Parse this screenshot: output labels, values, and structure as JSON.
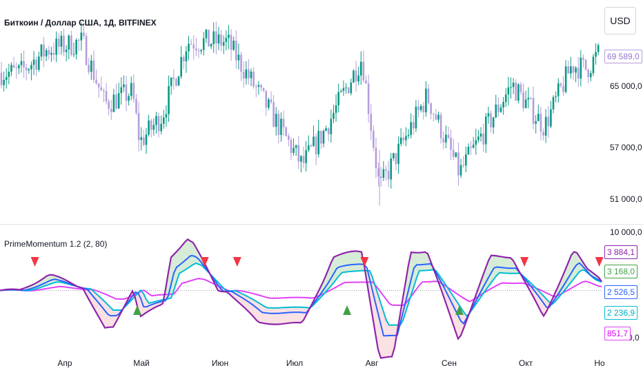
{
  "header": {
    "title": "Биткоин / Доллар США, 1Д, BITFINEX",
    "currency_button": "USD"
  },
  "indicator": {
    "title": "PrimeMomentum 1.2 (2, 80)"
  },
  "colors": {
    "bull": "#089981",
    "bear": "#b39ddb",
    "purple": "#8e24aa",
    "blue": "#2962ff",
    "teal": "#00bcd4",
    "magenta": "#e040fb",
    "green_badge": "#43a047",
    "up_arrow": "#43a047",
    "down_arrow": "#f23645",
    "fill_pos": "#c8e6c9",
    "fill_neg": "#f8d7da"
  },
  "price_axis": {
    "ticks": [
      "65 000,0",
      "57 000,0",
      "51 000,0"
    ],
    "last_price": "69 589,0"
  },
  "indicator_axis": {
    "ticks": [
      "10 000,0",
      "0,0"
    ],
    "badges": [
      "3 884,1",
      "3 168,0",
      "2 526,5",
      "2 236,9",
      "851,7"
    ]
  },
  "x_axis": {
    "labels": [
      "Апр",
      "Май",
      "Июн",
      "Июл",
      "Авг",
      "Сен",
      "Окт",
      "Но"
    ]
  },
  "chart_data": [
    {
      "type": "candlestick",
      "title": "Биткоин / Доллар США, 1Д, BITFINEX",
      "x_labels": [
        "Апр",
        "Май",
        "Июн",
        "Июл",
        "Авг",
        "Сен",
        "Окт",
        "Но"
      ],
      "price_ticks": [
        65000,
        57000,
        51000
      ],
      "last_price": 69589,
      "close_trend": [
        [
          "Mar 14",
          67000
        ],
        [
          "Mar 25",
          70000
        ],
        [
          "Apr 8",
          71000
        ],
        [
          "Apr 17",
          63000
        ],
        [
          "Apr 28",
          64500
        ],
        [
          "May 1",
          58000
        ],
        [
          "May 10",
          61500
        ],
        [
          "May 20",
          71000
        ],
        [
          "Jun 5",
          71000
        ],
        [
          "Jun 24",
          61000
        ],
        [
          "Jul 5",
          55000
        ],
        [
          "Jul 14",
          59500
        ],
        [
          "Jul 29",
          69000
        ],
        [
          "Aug 5",
          52000
        ],
        [
          "Aug 24",
          64000
        ],
        [
          "Sep 6",
          54000
        ],
        [
          "Sep 27",
          65500
        ],
        [
          "Oct 10",
          60000
        ],
        [
          "Oct 21",
          68000
        ],
        [
          "Oct 27",
          67500
        ],
        [
          "Nov 1",
          69589
        ]
      ]
    },
    {
      "type": "line",
      "title": "PrimeMomentum 1.2 (2, 80)",
      "y_ticks": [
        10000,
        0
      ],
      "series": [
        {
          "value": 3884.1
        },
        {
          "value": 3168.0
        },
        {
          "value": 2526.5
        },
        {
          "value": 2236.9
        },
        {
          "value": 851.7
        }
      ]
    }
  ]
}
